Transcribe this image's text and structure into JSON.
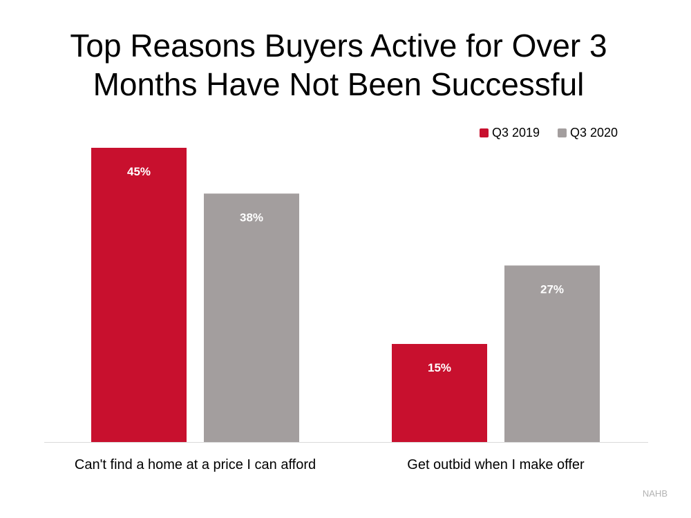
{
  "title_lines": [
    "Top Reasons Buyers Active for Over 3",
    "Months Have Not Been Successful"
  ],
  "source": "NAHB",
  "colors": {
    "Q3 2019": "#c8102e",
    "Q3 2020": "#a39e9e",
    "axis": "#d9d9d9"
  },
  "chart_data": {
    "type": "bar",
    "title": "Top Reasons Buyers Active for Over 3 Months Have Not Been Successful",
    "categories": [
      "Can't find a home at a price I can afford",
      "Get outbid when I make offer"
    ],
    "series": [
      {
        "name": "Q3 2019",
        "values": [
          45,
          15
        ],
        "labels": [
          "45%",
          "15%"
        ]
      },
      {
        "name": "Q3 2020",
        "values": [
          38,
          27
        ],
        "labels": [
          "38%",
          "27%"
        ]
      }
    ],
    "ylim": [
      0,
      45
    ],
    "unit": "%",
    "grid": false,
    "legend": "top-right",
    "xlabel": "",
    "ylabel": ""
  }
}
